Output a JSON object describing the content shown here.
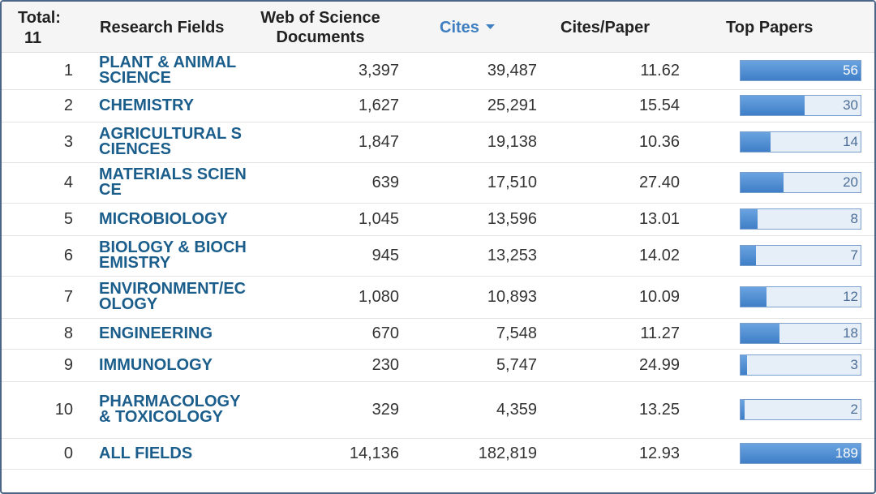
{
  "header": {
    "total_label": "Total:",
    "total": "11",
    "columns": [
      "Research Fields",
      "Web of Science Documents",
      "Cites",
      "Cites/Paper",
      "Top Papers"
    ]
  },
  "table": {
    "rows": [
      {
        "rank": 1,
        "field": "PLANT & ANIMAL SCIENCE",
        "documents": "3,397",
        "cites": "39,487",
        "cites_per_paper": "11.62",
        "top_papers": 56
      },
      {
        "rank": 2,
        "field": "CHEMISTRY",
        "documents": "1,627",
        "cites": "25,291",
        "cites_per_paper": "15.54",
        "top_papers": 30
      },
      {
        "rank": 3,
        "field": "AGRICULTURAL SCIENCES",
        "documents": "1,847",
        "cites": "19,138",
        "cites_per_paper": "10.36",
        "top_papers": 14
      },
      {
        "rank": 4,
        "field": "MATERIALS SCIENCE",
        "documents": "639",
        "cites": "17,510",
        "cites_per_paper": "27.40",
        "top_papers": 20
      },
      {
        "rank": 5,
        "field": "MICROBIOLOGY",
        "documents": "1,045",
        "cites": "13,596",
        "cites_per_paper": "13.01",
        "top_papers": 8
      },
      {
        "rank": 6,
        "field": "BIOLOGY & BIOCHEMISTRY",
        "documents": "945",
        "cites": "13,253",
        "cites_per_paper": "14.02",
        "top_papers": 7
      },
      {
        "rank": 7,
        "field": "ENVIRONMENT/ECOLOGY",
        "documents": "1,080",
        "cites": "10,893",
        "cites_per_paper": "10.09",
        "top_papers": 12
      },
      {
        "rank": 8,
        "field": "ENGINEERING",
        "documents": "670",
        "cites": "7,548",
        "cites_per_paper": "11.27",
        "top_papers": 18
      },
      {
        "rank": 9,
        "field": "IMMUNOLOGY",
        "documents": "230",
        "cites": "5,747",
        "cites_per_paper": "24.99",
        "top_papers": 3
      },
      {
        "rank": 10,
        "field": "PHARMACOLOGY & TOXICOLOGY",
        "documents": "329",
        "cites": "4,359",
        "cites_per_paper": "13.25",
        "top_papers": 2
      },
      {
        "rank": 0,
        "field": "ALL FIELDS",
        "documents": "14,136",
        "cites": "182,819",
        "cites_per_paper": "12.93",
        "top_papers": 189
      }
    ]
  }
}
